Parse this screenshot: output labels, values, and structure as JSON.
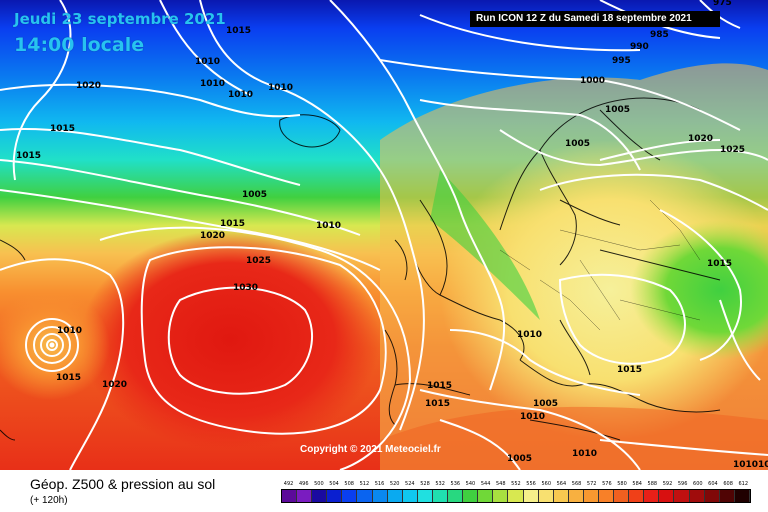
{
  "map": {
    "valid_date": "Jeudi 23 septembre 2021",
    "valid_time": "14:00 locale",
    "run_info": "Run ICON 12 Z du Samedi 18 septembre 2021",
    "copyright": "Copyright © 2021 Meteociel.fr",
    "product": "Géop. Z500 & pression au sol",
    "lead_time": "(+ 120h)",
    "isobar_labels": [
      {
        "text": "975"
      },
      {
        "text": "985"
      },
      {
        "text": "990"
      },
      {
        "text": "995"
      },
      {
        "text": "1000"
      },
      {
        "text": "1005"
      },
      {
        "text": "1005"
      },
      {
        "text": "1005"
      },
      {
        "text": "1010"
      },
      {
        "text": "1010"
      },
      {
        "text": "1010"
      },
      {
        "text": "1010"
      },
      {
        "text": "1010"
      },
      {
        "text": "1010"
      },
      {
        "text": "1010"
      },
      {
        "text": "1010"
      },
      {
        "text": "1015"
      },
      {
        "text": "1015"
      },
      {
        "text": "1015"
      },
      {
        "text": "1015"
      },
      {
        "text": "1015"
      },
      {
        "text": "1015"
      },
      {
        "text": "1015"
      },
      {
        "text": "1015"
      },
      {
        "text": "1020"
      },
      {
        "text": "1020"
      },
      {
        "text": "1020"
      },
      {
        "text": "1020"
      },
      {
        "text": "1025"
      },
      {
        "text": "1025"
      },
      {
        "text": "1030"
      },
      {
        "text": "1005"
      },
      {
        "text": "1010"
      },
      {
        "text": "101010"
      },
      {
        "text": "1015"
      },
      {
        "text": "1005"
      }
    ],
    "legend": {
      "values": [
        "492",
        "496",
        "500",
        "504",
        "508",
        "512",
        "516",
        "520",
        "524",
        "528",
        "532",
        "536",
        "540",
        "544",
        "548",
        "552",
        "556",
        "560",
        "564",
        "568",
        "572",
        "576",
        "580",
        "584",
        "588",
        "592",
        "596",
        "600",
        "604",
        "608",
        "612"
      ],
      "colors": [
        "#5c0a9a",
        "#7a1cc0",
        "#1a0aa0",
        "#0a1fd0",
        "#0a3ff0",
        "#0a64f0",
        "#0a88f0",
        "#0aaaf0",
        "#10c8f0",
        "#20e0e0",
        "#20e0b0",
        "#28d880",
        "#40d040",
        "#70d838",
        "#a8e040",
        "#d8e850",
        "#f6f08a",
        "#f8e070",
        "#f8c850",
        "#f8b040",
        "#f89830",
        "#f88028",
        "#f06020",
        "#f04018",
        "#e82018",
        "#d81010",
        "#c01010",
        "#a00c0c",
        "#800808",
        "#500404",
        "#200000"
      ]
    }
  }
}
